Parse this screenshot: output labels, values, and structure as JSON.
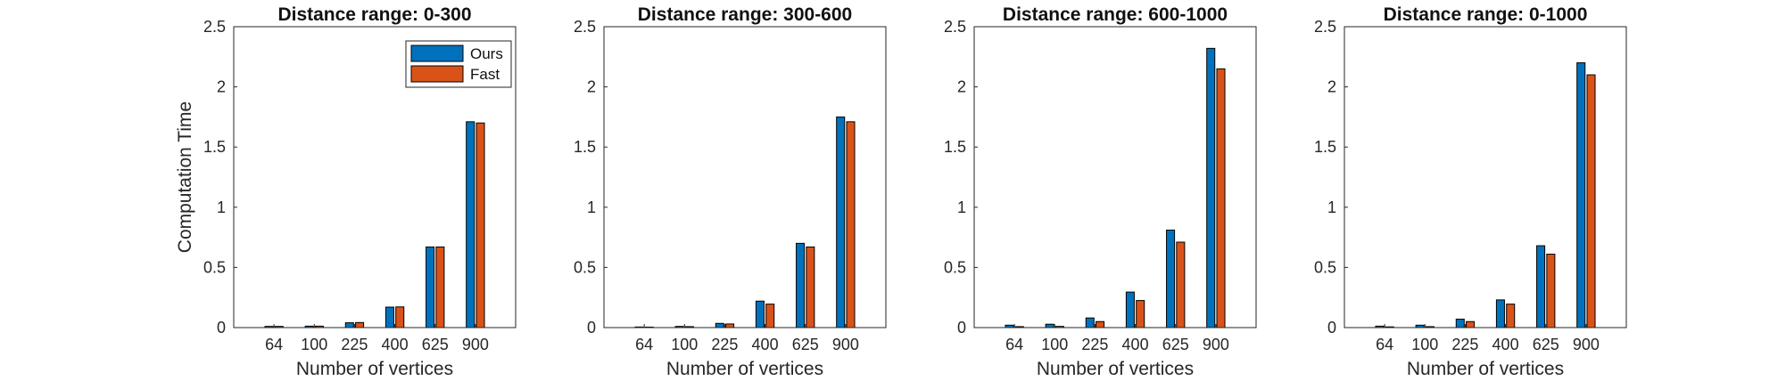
{
  "chart_data": [
    {
      "type": "bar",
      "title": "Distance range: 0-300",
      "xlabel": "Number of vertices",
      "ylabel": "Computation Time",
      "categories": [
        "64",
        "100",
        "225",
        "400",
        "625",
        "900"
      ],
      "series": [
        {
          "name": "Ours",
          "color": "#0072BD",
          "values": [
            0.01,
            0.012,
            0.04,
            0.17,
            0.67,
            1.71
          ]
        },
        {
          "name": "Fast",
          "color": "#D95319",
          "values": [
            0.01,
            0.012,
            0.042,
            0.172,
            0.67,
            1.7
          ]
        }
      ],
      "ylim": [
        0,
        2.5
      ],
      "yticks": [
        "0",
        "0.5",
        "1",
        "1.5",
        "2",
        "2.5"
      ],
      "legend": "top-right",
      "grid": false
    },
    {
      "type": "bar",
      "title": "Distance range: 300-600",
      "xlabel": "Number of vertices",
      "ylabel": "",
      "categories": [
        "64",
        "100",
        "225",
        "400",
        "625",
        "900"
      ],
      "series": [
        {
          "name": "Ours",
          "color": "#0072BD",
          "values": [
            0.005,
            0.01,
            0.035,
            0.22,
            0.7,
            1.75
          ]
        },
        {
          "name": "Fast",
          "color": "#D95319",
          "values": [
            0.004,
            0.008,
            0.03,
            0.195,
            0.67,
            1.71
          ]
        }
      ],
      "ylim": [
        0,
        2.5
      ],
      "yticks": [
        "0",
        "0.5",
        "1",
        "1.5",
        "2",
        "2.5"
      ],
      "grid": false
    },
    {
      "type": "bar",
      "title": "Distance range: 600-1000",
      "xlabel": "Number of vertices",
      "ylabel": "",
      "categories": [
        "64",
        "100",
        "225",
        "400",
        "625",
        "900"
      ],
      "series": [
        {
          "name": "Ours",
          "color": "#0072BD",
          "values": [
            0.02,
            0.028,
            0.08,
            0.295,
            0.81,
            2.32
          ]
        },
        {
          "name": "Fast",
          "color": "#D95319",
          "values": [
            0.008,
            0.01,
            0.05,
            0.225,
            0.71,
            2.15
          ]
        }
      ],
      "ylim": [
        0,
        2.5
      ],
      "yticks": [
        "0",
        "0.5",
        "1",
        "1.5",
        "2",
        "2.5"
      ],
      "grid": false
    },
    {
      "type": "bar",
      "title": "Distance range: 0-1000",
      "xlabel": "Number of vertices",
      "ylabel": "",
      "categories": [
        "64",
        "100",
        "225",
        "400",
        "625",
        "900"
      ],
      "series": [
        {
          "name": "Ours",
          "color": "#0072BD",
          "values": [
            0.012,
            0.02,
            0.07,
            0.23,
            0.68,
            2.2
          ]
        },
        {
          "name": "Fast",
          "color": "#D95319",
          "values": [
            0.006,
            0.008,
            0.05,
            0.195,
            0.61,
            2.1
          ]
        }
      ],
      "ylim": [
        0,
        2.5
      ],
      "yticks": [
        "0",
        "0.5",
        "1",
        "1.5",
        "2",
        "2.5"
      ],
      "grid": false
    }
  ]
}
